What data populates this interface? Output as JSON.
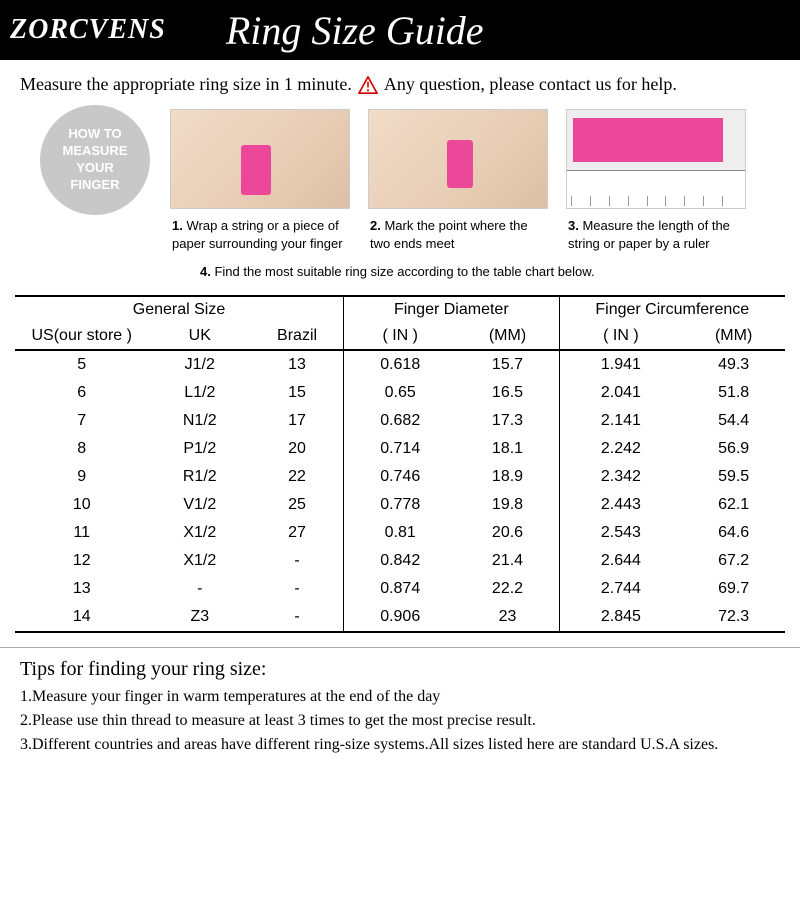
{
  "header": {
    "brand": "ZORCVENS",
    "title": "Ring Size Guide"
  },
  "intro": {
    "text1": "Measure the appropriate ring size in 1 minute.",
    "text2": "Any question, please contact us for help.",
    "warn_color": "#d40000"
  },
  "badge": {
    "line1": "HOW TO",
    "line2": "MEASURE",
    "line3": "YOUR",
    "line4": "FINGER"
  },
  "steps": {
    "s1_num": "1.",
    "s1_text": "Wrap a string or a piece of paper surrounding your finger",
    "s2_num": "2.",
    "s2_text": "Mark the point where the two ends meet",
    "s3_num": "3.",
    "s3_text": "Measure the length of the string or paper by a ruler",
    "s4_num": "4.",
    "s4_text": "Find the most suitable ring size according to the table chart below.",
    "ruler_marks": [
      "1",
      "2",
      "3",
      "4",
      "5",
      "6",
      "7",
      "8",
      "9"
    ],
    "pink": "#ec4899"
  },
  "table": {
    "group_headers": [
      "General Size",
      "Finger Diameter",
      "Finger Circumference"
    ],
    "columns": [
      "US(our store )",
      "UK",
      "Brazil",
      "( IN )",
      "(MM)",
      "( IN )",
      "(MM)"
    ],
    "rows": [
      [
        "5",
        "J1/2",
        "13",
        "0.618",
        "15.7",
        "1.941",
        "49.3"
      ],
      [
        "6",
        "L1/2",
        "15",
        "0.65",
        "16.5",
        "2.041",
        "51.8"
      ],
      [
        "7",
        "N1/2",
        "17",
        "0.682",
        "17.3",
        "2.141",
        "54.4"
      ],
      [
        "8",
        "P1/2",
        "20",
        "0.714",
        "18.1",
        "2.242",
        "56.9"
      ],
      [
        "9",
        "R1/2",
        "22",
        "0.746",
        "18.9",
        "2.342",
        "59.5"
      ],
      [
        "10",
        "V1/2",
        "25",
        "0.778",
        "19.8",
        "2.443",
        "62.1"
      ],
      [
        "11",
        "X1/2",
        "27",
        "0.81",
        "20.6",
        "2.543",
        "64.6"
      ],
      [
        "12",
        "X1/2",
        "-",
        "0.842",
        "21.4",
        "2.644",
        "67.2"
      ],
      [
        "13",
        "-",
        "-",
        "0.874",
        "22.2",
        "2.744",
        "69.7"
      ],
      [
        "14",
        "Z3",
        "-",
        "0.906",
        "23",
        "2.845",
        "72.3"
      ]
    ]
  },
  "tips": {
    "title": "Tips for finding your ring size:",
    "t1": "1.Measure your finger in warm temperatures at the end of the day",
    "t2": "2.Please use thin thread to measure at least 3 times to get the most precise result.",
    "t3": "3.Different countries and areas have different ring-size systems.All sizes listed here are standard U.S.A sizes."
  }
}
